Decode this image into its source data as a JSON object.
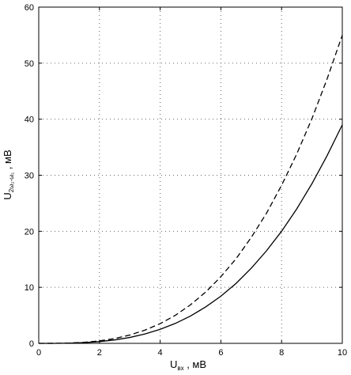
{
  "chart_data": {
    "type": "line",
    "title": "",
    "xlabel": {
      "main": "U",
      "sub": "вх",
      "unit": " , мВ"
    },
    "ylabel": {
      "main": "U",
      "sub": "2ω₂-ω₁",
      "unit": " , мВ"
    },
    "xlim": [
      0,
      10
    ],
    "ylim": [
      0,
      60
    ],
    "x_ticks": [
      0,
      2,
      4,
      6,
      8,
      10
    ],
    "y_ticks": [
      0,
      10,
      20,
      30,
      40,
      50,
      60
    ],
    "grid": true,
    "grid_style": "dotted",
    "legend": "none",
    "x": [
      0,
      0.5,
      1,
      1.5,
      2,
      2.5,
      3,
      3.5,
      4,
      4.5,
      5,
      5.5,
      6,
      6.5,
      7,
      7.5,
      8,
      8.5,
      9,
      9.5,
      10
    ],
    "series": [
      {
        "style": "solid",
        "color": "#000000",
        "values": [
          0,
          0.0,
          0.04,
          0.13,
          0.31,
          0.61,
          1.05,
          1.67,
          2.5,
          3.56,
          4.88,
          6.5,
          8.42,
          10.7,
          13.4,
          16.5,
          20.0,
          24.0,
          28.5,
          33.5,
          39.0
        ]
      },
      {
        "style": "dashed",
        "color": "#000000",
        "values": [
          0,
          0.01,
          0.06,
          0.19,
          0.44,
          0.86,
          1.49,
          2.36,
          3.52,
          5.01,
          6.88,
          9.15,
          11.9,
          15.1,
          18.9,
          23.2,
          28.2,
          33.8,
          40.1,
          47.2,
          55.0
        ]
      }
    ]
  }
}
